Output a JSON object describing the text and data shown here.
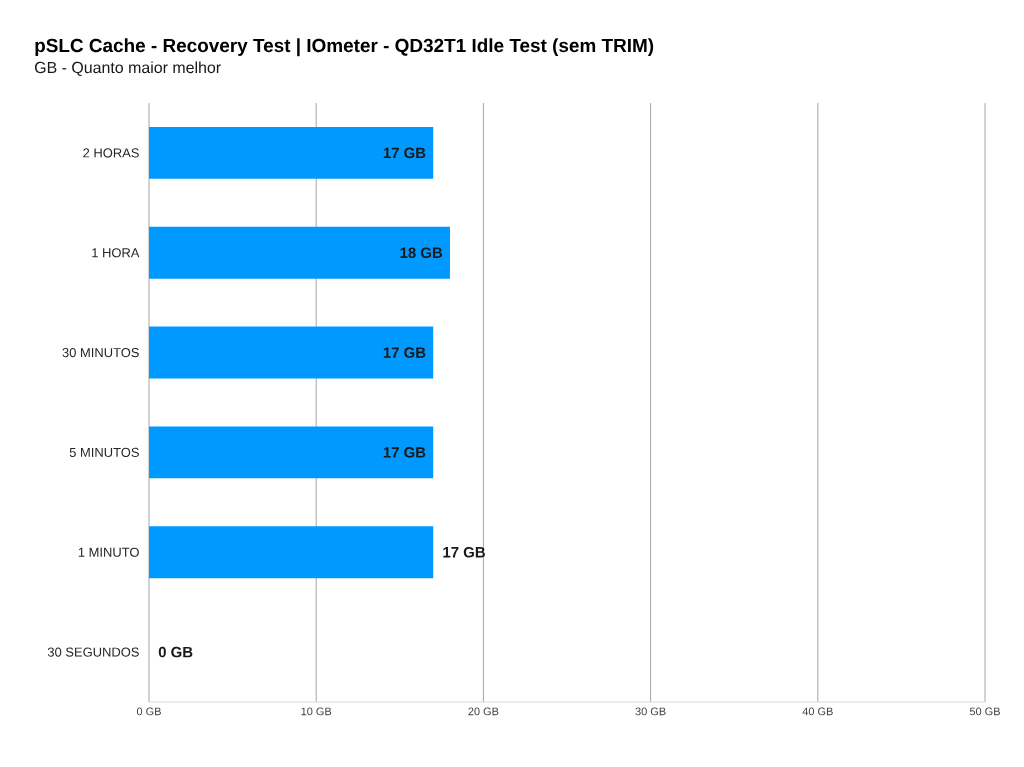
{
  "chart_data": {
    "type": "bar",
    "orientation": "horizontal",
    "title": "pSLC Cache - Recovery Test | IOmeter - QD32T1 Idle Test (sem TRIM)",
    "subtitle": "GB - Quanto maior melhor",
    "categories": [
      "2 HORAS",
      "1 HORA",
      "30 MINUTOS",
      "5 MINUTOS",
      "1 MINUTO",
      "30 SEGUNDOS"
    ],
    "values": [
      17,
      18,
      17,
      17,
      17,
      0
    ],
    "value_labels": [
      "17 GB",
      "18 GB",
      "17 GB",
      "17 GB",
      "17 GB",
      "0 GB"
    ],
    "color": "#0099ff",
    "xlim": [
      0,
      50
    ],
    "xticks": [
      {
        "value": 0,
        "label": "0 GB"
      },
      {
        "value": 10,
        "label": "10 GB"
      },
      {
        "value": 20,
        "label": "20 GB"
      },
      {
        "value": 30,
        "label": "30 GB"
      },
      {
        "value": 40,
        "label": "40 GB"
      },
      {
        "value": 50,
        "label": "50 GB"
      }
    ],
    "grid": "x"
  }
}
